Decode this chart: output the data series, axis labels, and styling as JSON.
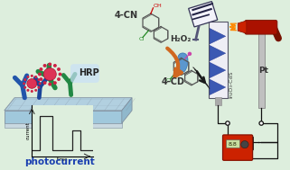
{
  "bg_color": "#ddeedd",
  "title_text": "photocurrent",
  "title_color": "#1a3fb0",
  "label_4cn": "4-CN",
  "label_hrp": "HRP",
  "label_h2o2": "H₂O₂",
  "label_4cd": "4-CD",
  "label_pt": "Pt",
  "label_in2o3cds": "In₂O₃-CdS",
  "arrow_color": "#d06820",
  "fig_width": 3.21,
  "fig_height": 1.89,
  "dpi": 100
}
